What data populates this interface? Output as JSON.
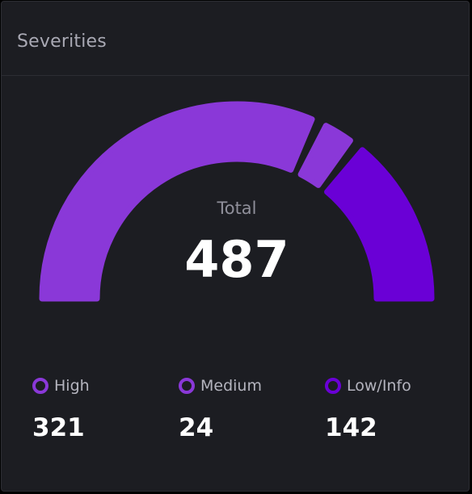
{
  "card": {
    "title": "Severities"
  },
  "total": {
    "label": "Total",
    "value": "487"
  },
  "chart_data": {
    "type": "pie",
    "variant": "semi-donut gauge",
    "total": 487,
    "categories": [
      "High",
      "Medium",
      "Low/Info"
    ],
    "values": [
      321,
      24,
      142
    ],
    "colors": [
      "#8a38d8",
      "#8a38d8",
      "#6a00d6"
    ],
    "legend_placement": "bottom"
  },
  "legend": [
    {
      "label": "High",
      "value": "321",
      "color": "#8a38d8"
    },
    {
      "label": "Medium",
      "value": "24",
      "color": "#8a38d8"
    },
    {
      "label": "Low/Info",
      "value": "142",
      "color": "#6a00d6"
    }
  ]
}
